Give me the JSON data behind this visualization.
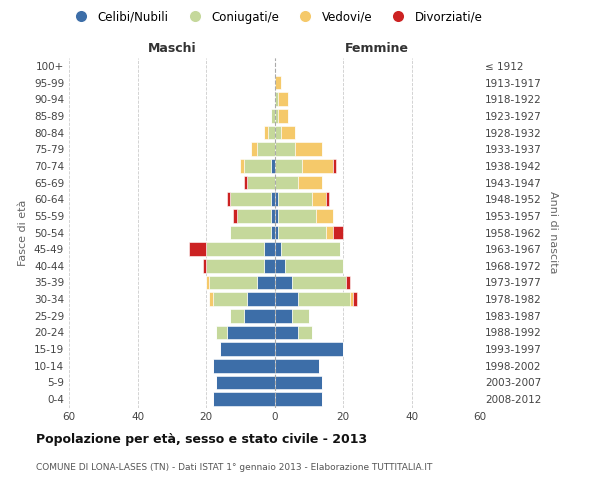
{
  "age_groups": [
    "0-4",
    "5-9",
    "10-14",
    "15-19",
    "20-24",
    "25-29",
    "30-34",
    "35-39",
    "40-44",
    "45-49",
    "50-54",
    "55-59",
    "60-64",
    "65-69",
    "70-74",
    "75-79",
    "80-84",
    "85-89",
    "90-94",
    "95-99",
    "100+"
  ],
  "birth_years": [
    "2008-2012",
    "2003-2007",
    "1998-2002",
    "1993-1997",
    "1988-1992",
    "1983-1987",
    "1978-1982",
    "1973-1977",
    "1968-1972",
    "1963-1967",
    "1958-1962",
    "1953-1957",
    "1948-1952",
    "1943-1947",
    "1938-1942",
    "1933-1937",
    "1928-1932",
    "1923-1927",
    "1918-1922",
    "1913-1917",
    "≤ 1912"
  ],
  "male": {
    "celibi": [
      18,
      17,
      18,
      16,
      14,
      9,
      8,
      5,
      3,
      3,
      1,
      1,
      1,
      0,
      1,
      0,
      0,
      0,
      0,
      0,
      0
    ],
    "coniugati": [
      0,
      0,
      0,
      0,
      3,
      4,
      10,
      14,
      17,
      17,
      12,
      10,
      12,
      8,
      8,
      5,
      2,
      1,
      0,
      0,
      0
    ],
    "vedovi": [
      0,
      0,
      0,
      0,
      0,
      0,
      1,
      1,
      0,
      0,
      0,
      0,
      0,
      0,
      1,
      2,
      1,
      0,
      0,
      0,
      0
    ],
    "divorziati": [
      0,
      0,
      0,
      0,
      0,
      0,
      0,
      0,
      1,
      5,
      0,
      1,
      1,
      1,
      0,
      0,
      0,
      0,
      0,
      0,
      0
    ]
  },
  "female": {
    "nubili": [
      14,
      14,
      13,
      20,
      7,
      5,
      7,
      5,
      3,
      2,
      1,
      1,
      1,
      0,
      0,
      0,
      0,
      0,
      0,
      0,
      0
    ],
    "coniugate": [
      0,
      0,
      0,
      0,
      4,
      5,
      15,
      16,
      17,
      17,
      14,
      11,
      10,
      7,
      8,
      6,
      2,
      1,
      1,
      0,
      0
    ],
    "vedove": [
      0,
      0,
      0,
      0,
      0,
      0,
      1,
      0,
      0,
      0,
      2,
      5,
      4,
      7,
      9,
      8,
      4,
      3,
      3,
      2,
      0
    ],
    "divorziate": [
      0,
      0,
      0,
      0,
      0,
      0,
      1,
      1,
      0,
      0,
      3,
      0,
      1,
      0,
      1,
      0,
      0,
      0,
      0,
      0,
      0
    ]
  },
  "colors": {
    "celibi": "#3d6ea8",
    "coniugati": "#c5d89b",
    "vedovi": "#f5c96a",
    "divorziati": "#cc2222"
  },
  "xlim": 60,
  "title": "Popolazione per età, sesso e stato civile - 2013",
  "subtitle": "COMUNE DI LONA-LASES (TN) - Dati ISTAT 1° gennaio 2013 - Elaborazione TUTTITALIA.IT",
  "ylabel_left": "Fasce di età",
  "ylabel_right": "Anni di nascita",
  "xlabel_male": "Maschi",
  "xlabel_female": "Femmine",
  "legend_labels": [
    "Celibi/Nubili",
    "Coniugati/e",
    "Vedovi/e",
    "Divorziati/e"
  ],
  "background_color": "#ffffff",
  "grid_color": "#cccccc"
}
